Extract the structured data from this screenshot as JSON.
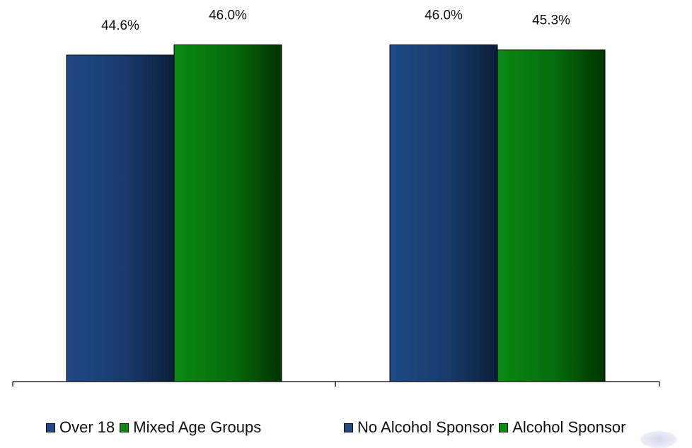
{
  "colors": {
    "blue_dark": "#0b1e38",
    "blue_mid": "#1f4a86",
    "green_dark": "#003300",
    "green_mid": "#0a8a12",
    "axis": "#000000"
  },
  "chart_data": [
    {
      "type": "bar",
      "categories": [
        ""
      ],
      "series": [
        {
          "name": "Over 18",
          "values": [
            44.6
          ],
          "color": "blue",
          "label": "44.6%"
        },
        {
          "name": "Mixed Age Groups",
          "values": [
            46.0
          ],
          "color": "green",
          "label": "46.0%"
        }
      ],
      "ylim": [
        0,
        50
      ],
      "grid": false,
      "legend": "bottom"
    },
    {
      "type": "bar",
      "categories": [
        ""
      ],
      "series": [
        {
          "name": "No Alcohol Sponsor",
          "values": [
            46.0
          ],
          "color": "blue",
          "label": "46.0%"
        },
        {
          "name": "Alcohol Sponsor",
          "values": [
            45.3
          ],
          "color": "green",
          "label": "45.3%"
        }
      ],
      "ylim": [
        0,
        50
      ],
      "grid": false,
      "legend": "bottom"
    }
  ],
  "legend": {
    "left": [
      {
        "label": "Over 18",
        "color": "#1f4a86"
      },
      {
        "label": "Mixed Age Groups",
        "color": "#0a8a12"
      }
    ],
    "right": [
      {
        "label": "No Alcohol Sponsor",
        "color": "#1f4a86"
      },
      {
        "label": "Alcohol Sponsor",
        "color": "#0a8a12"
      }
    ]
  }
}
